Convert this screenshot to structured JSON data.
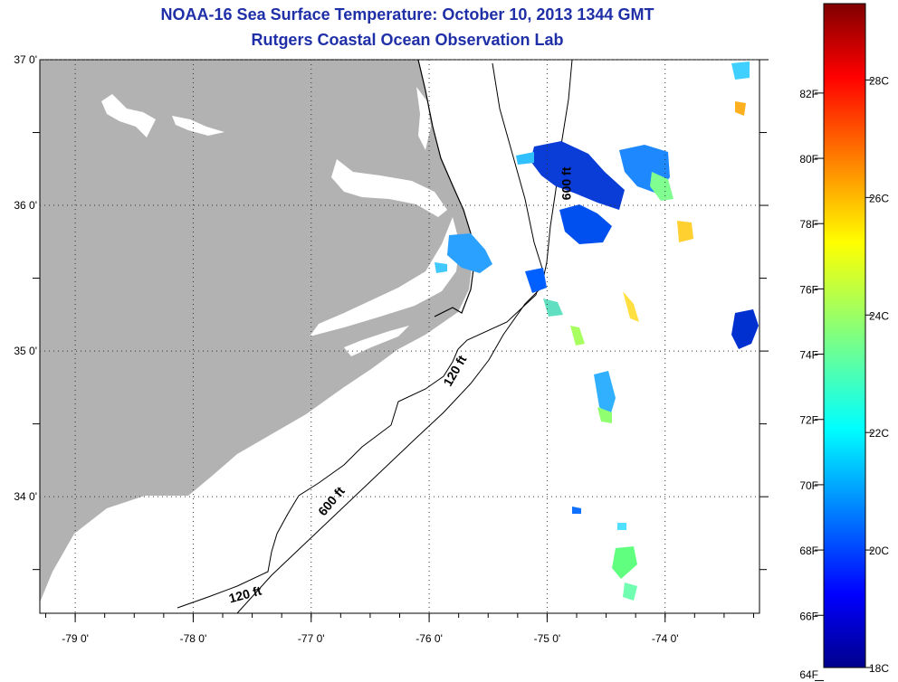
{
  "title": "NOAA-16 Sea Surface Temperature:  October 10, 2013 1344 GMT",
  "subtitle": "Rutgers Coastal Ocean Observation Lab",
  "map": {
    "lat_ticks": [
      {
        "value": 37,
        "label": "37 0'"
      },
      {
        "value": 36,
        "label": "36 0'"
      },
      {
        "value": 35,
        "label": "35 0'"
      },
      {
        "value": 34,
        "label": "34 0'"
      }
    ],
    "lon_ticks": [
      {
        "value": -79,
        "label": "-79 0'"
      },
      {
        "value": -78,
        "label": "-78 0'"
      },
      {
        "value": -77,
        "label": "-77 0'"
      },
      {
        "value": -76,
        "label": "-76 0'"
      },
      {
        "value": -75,
        "label": "-75 0'"
      },
      {
        "value": -74,
        "label": "-74 0'"
      }
    ],
    "lon_range": [
      -79.3,
      -73.2
    ],
    "lat_range": [
      33.2,
      37.0
    ],
    "land_color": "#b2b2b2",
    "grid": "dotted",
    "isobath_labels": [
      {
        "text": "600 ft",
        "lon": -74.8,
        "lat": 36.15,
        "rotate": -90
      },
      {
        "text": "120 ft",
        "lon": -75.75,
        "lat": 34.85,
        "rotate": -60
      },
      {
        "text": "600 ft",
        "lon": -76.8,
        "lat": 33.95,
        "rotate": -50
      },
      {
        "text": "120 ft",
        "lon": -77.55,
        "lat": 33.3,
        "rotate": -15
      }
    ]
  },
  "colorbar": {
    "f_labels": [
      "82F",
      "80F",
      "78F",
      "76F",
      "74F",
      "72F",
      "70F",
      "68F",
      "66F",
      "64F"
    ],
    "c_labels": [
      "28C",
      "26C",
      "24C",
      "22C",
      "20C",
      "18C"
    ],
    "min_c": 18,
    "max_c": 29.3
  }
}
